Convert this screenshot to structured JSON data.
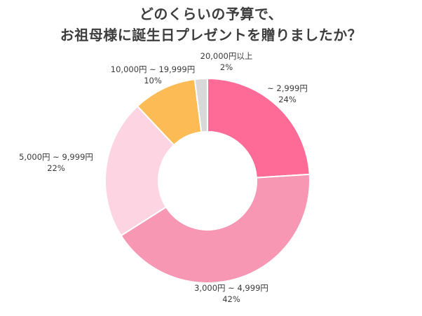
{
  "title_line1": "どのくらいの予算で、",
  "title_line2": "お祖母様に誕生日プレゼントを贈りましたか？",
  "chart_data": {
    "type": "pie",
    "donut": true,
    "start": "top, clockwise",
    "slices": [
      {
        "label": "~ 2,999円",
        "value": 24,
        "value_label": "24%",
        "color": "#FE6B97"
      },
      {
        "label": "3,000円 ~ 4,999円",
        "value": 42,
        "value_label": "42%",
        "color": "#F797B3"
      },
      {
        "label": "5,000円 ~ 9,999円",
        "value": 22,
        "value_label": "22%",
        "color": "#FDD4E2"
      },
      {
        "label": "10,000円 ~ 19,999円",
        "value": 10,
        "value_label": "10%",
        "color": "#FDBB55"
      },
      {
        "label": "20,000円以上",
        "value": 2,
        "value_label": "2%",
        "color": "#D9D9D9"
      }
    ]
  }
}
